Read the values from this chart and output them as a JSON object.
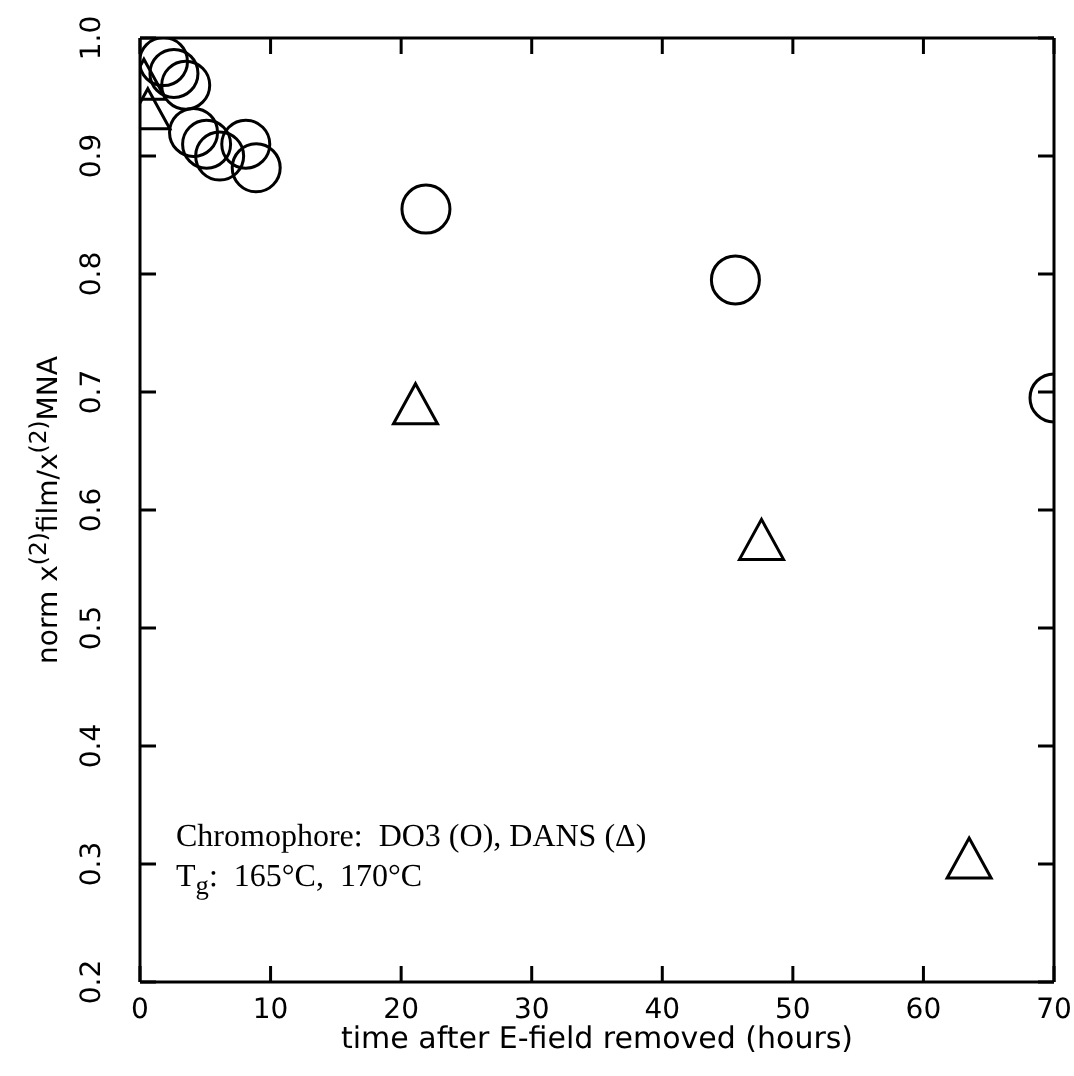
{
  "chart_data": {
    "type": "scatter",
    "xlabel": "time after E-field removed (hours)",
    "ylabel": "norm x$^{(2)}$film/x$^{(2)}$MNA",
    "xlim": [
      0,
      70
    ],
    "xticks": [
      0,
      10,
      20,
      30,
      40,
      50,
      60,
      70
    ],
    "ylim": [
      0.2,
      1.0
    ],
    "yticks": [
      {
        "value": 0.2,
        "label": "0.2"
      },
      {
        "value": 0.3,
        "label": "0.3"
      },
      {
        "value": 0.4,
        "label": "0.4"
      },
      {
        "value": 0.5,
        "label": "0.5"
      },
      {
        "value": 0.6,
        "label": "0.6"
      },
      {
        "value": 0.7,
        "label": "0.7"
      },
      {
        "value": 0.8,
        "label": "0.8"
      },
      {
        "value": 0.9,
        "label": "0.9"
      },
      {
        "value": 1.0,
        "label": "1.0"
      }
    ],
    "grid": false,
    "series": [
      {
        "color": "#000000",
        "marker": "circle",
        "x": [
          1.8,
          2.6,
          3.5,
          4.1,
          5.1,
          6.1,
          8.1,
          8.9,
          21.9,
          45.6,
          70
        ],
        "values": [
          0.98,
          0.97,
          0.96,
          0.92,
          0.91,
          0.9,
          0.91,
          0.89,
          0.855,
          0.795,
          0.695
        ]
      },
      {
        "color": "#000000",
        "marker": "triangle",
        "x": [
          0.3,
          0.6,
          21.1,
          47.6,
          63.5
        ],
        "values": [
          0.96,
          0.935,
          0.685,
          0.57,
          0.3
        ]
      }
    ],
    "annotations": [
      "Chromophore:  DO3 (O), DANS (Δ)",
      "T$_{g}$:  165°C,  170°C"
    ]
  }
}
